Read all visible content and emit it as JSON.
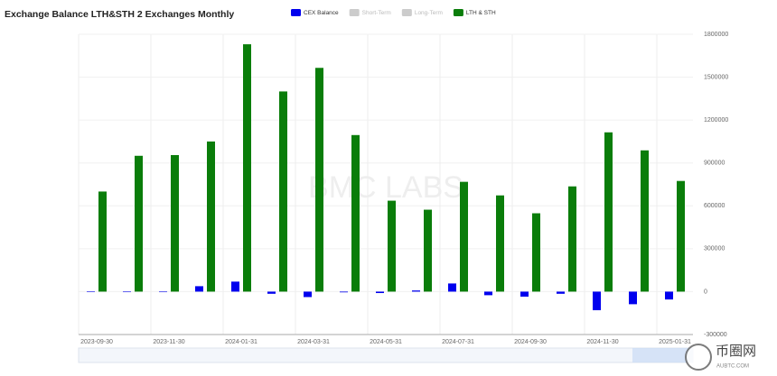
{
  "chart_data": {
    "type": "bar",
    "title": "Exchange Balance LTH&STH 2 Exchanges Monthly",
    "watermark": "BMC LABS",
    "categories": [
      "2023-09-30",
      null,
      "2023-11-30",
      null,
      "2024-01-31",
      null,
      "2024-03-31",
      null,
      "2024-05-31",
      null,
      "2024-07-31",
      null,
      "2024-09-30",
      null,
      "2024-11-30",
      null,
      "2025-01-31"
    ],
    "series": [
      {
        "name": "CEX Balance",
        "color": "#0000ee",
        "values": [
          2000,
          -3000,
          -3000,
          38000,
          70000,
          -15000,
          -38000,
          -5000,
          -10000,
          8000,
          57000,
          -25000,
          -35000,
          -15000,
          -130000,
          -88000,
          -55000
        ]
      },
      {
        "name": "Short-Term",
        "color": "#cccccc",
        "hidden": true
      },
      {
        "name": "Long-Term",
        "color": "#cccccc",
        "hidden": true
      },
      {
        "name": "LTH & STH",
        "color": "#0a7d0a",
        "values": [
          700000,
          950000,
          955000,
          1050000,
          1730000,
          1400000,
          1565000,
          1095000,
          636000,
          573000,
          768000,
          673000,
          548000,
          736000,
          1114000,
          988000,
          774000
        ]
      }
    ],
    "ylim": [
      -300000,
      1800000
    ],
    "yticks": [
      -300000,
      0,
      300000,
      600000,
      900000,
      1200000,
      1500000,
      1800000
    ],
    "grid": true
  },
  "overlay": {
    "logo": "币圈网",
    "url": "AUBTC.COM"
  }
}
